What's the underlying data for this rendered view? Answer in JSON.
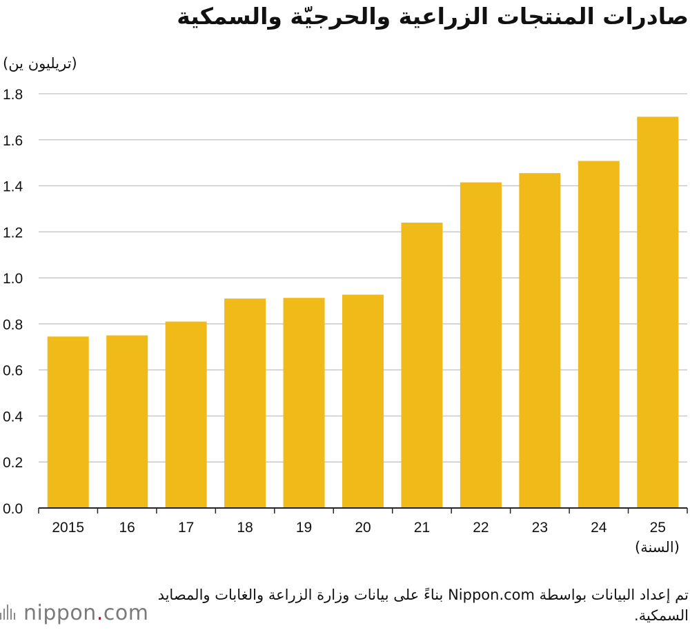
{
  "title": "صادرات المنتجات الزراعية والحرجيّة والسمكية",
  "unit_label": "(تريليون ين)",
  "x_unit_label": "(السنة)",
  "source": "تم إعداد البيانات بواسطة Nippon.com بناءً على بيانات وزارة الزراعة والغابات والمصايد السمكية.",
  "logo": {
    "name": "nippon",
    "dot": ".",
    "suffix": "com"
  },
  "colors": {
    "bar": "#F0BA18",
    "grid": "#c8c8c8",
    "axis": "#222222",
    "text": "#111111",
    "logo_dot": "#d0021b"
  },
  "chart_data": {
    "type": "bar",
    "categories": [
      "2015",
      "16",
      "17",
      "18",
      "19",
      "20",
      "21",
      "22",
      "23",
      "24",
      "25"
    ],
    "values": [
      0.745,
      0.75,
      0.81,
      0.91,
      0.913,
      0.927,
      1.24,
      1.415,
      1.455,
      1.508,
      1.7
    ],
    "title": "صادرات المنتجات الزراعية والحرجيّة والسمكية",
    "xlabel": "(السنة)",
    "ylabel": "(تريليون ين)",
    "ylim": [
      0,
      1.8
    ],
    "yticks": [
      "0.0",
      "0.2",
      "0.4",
      "0.6",
      "0.8",
      "1.0",
      "1.2",
      "1.4",
      "1.6",
      "1.8"
    ],
    "grid": true,
    "legend": "none"
  }
}
